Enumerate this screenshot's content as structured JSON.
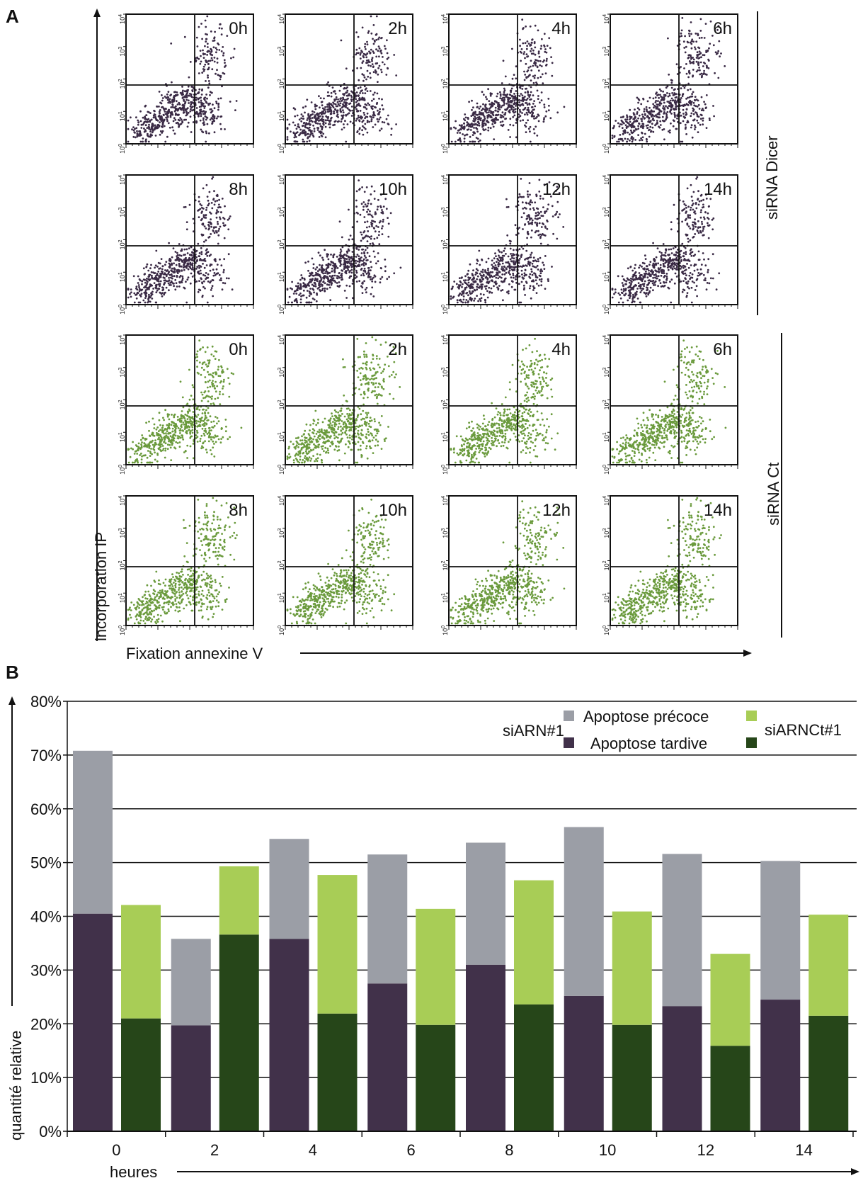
{
  "panel_a": {
    "label": "A",
    "y_axis_label": "incorporation IP",
    "x_axis_label": "Fixation annexine V",
    "y_tick_exponents": [
      "0",
      "1",
      "2",
      "3",
      "4"
    ],
    "y_tick_base": "10",
    "groups": [
      {
        "label": "siRNA Dicer",
        "dot_color": "#3a2a45",
        "rows": [
          [
            "0h",
            "2h",
            "4h",
            "6h"
          ],
          [
            "8h",
            "10h",
            "12h",
            "14h"
          ]
        ]
      },
      {
        "label": "siRNA Ct",
        "dot_color": "#6a9a3c",
        "rows": [
          [
            "0h",
            "2h",
            "4h",
            "6h"
          ],
          [
            "8h",
            "10h",
            "12h",
            "14h"
          ]
        ]
      }
    ]
  },
  "panel_b": {
    "label": "B",
    "ylabel": "quantité relative",
    "xlabel": "heures",
    "legend": {
      "group1_label": "siARN#1",
      "group2_label": "siARNCt#1",
      "early_label": "Apoptose précoce",
      "late_label": "Apoptose tardive"
    },
    "colors": {
      "sidicer_early": "#9b9ea6",
      "sidicer_late": "#41314a",
      "sict_early": "#a8cd56",
      "sict_late": "#264619"
    }
  },
  "chart_data": {
    "type": "bar",
    "stacked": true,
    "categories": [
      "0",
      "2",
      "4",
      "6",
      "8",
      "10",
      "12",
      "14"
    ],
    "xlabel": "heures",
    "ylabel": "quantité relative",
    "ylim": [
      0,
      80
    ],
    "y_ticks": [
      "0%",
      "10%",
      "20%",
      "30%",
      "40%",
      "50%",
      "60%",
      "70%",
      "80%"
    ],
    "grid": true,
    "legend_position": "top-right",
    "series": [
      {
        "name": "Apoptose tardive",
        "group": "siARN#1",
        "values": [
          40.5,
          19.7,
          35.8,
          27.5,
          31.0,
          25.2,
          23.3,
          24.5
        ]
      },
      {
        "name": "Apoptose précoce",
        "group": "siARN#1",
        "values": [
          30.3,
          16.1,
          18.6,
          24.0,
          22.7,
          31.4,
          28.3,
          25.8
        ]
      },
      {
        "name": "Apoptose tardive",
        "group": "siARNCt#1",
        "values": [
          21.0,
          36.6,
          21.9,
          19.8,
          23.6,
          19.8,
          15.9,
          21.5
        ]
      },
      {
        "name": "Apoptose précoce",
        "group": "siARNCt#1",
        "values": [
          21.1,
          12.7,
          25.8,
          21.6,
          23.1,
          21.1,
          17.1,
          18.8
        ]
      }
    ]
  }
}
